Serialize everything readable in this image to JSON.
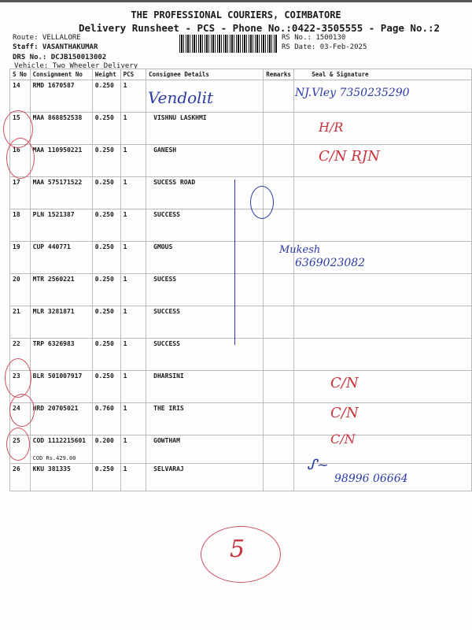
{
  "header": {
    "title": "THE PROFESSIONAL COURIERS, COIMBATORE",
    "subtitle": "Delivery Runsheet - PCS - Phone No.:0422-3505555 - Page No.:2",
    "route": "Route: VELLALORE",
    "staff": "Staff: VASANTHAKUMAR",
    "drs": "DRS No.: DCJB150013002",
    "vehicle": "Vehicle: Two Wheeler Delivery",
    "rs_no": "RS No.: 1500130",
    "rs_date": "RS Date: 03-Feb-2025"
  },
  "table": {
    "columns": [
      "S No",
      "Consignment No",
      "Weight",
      "PCS",
      "Consignee Details",
      "Remarks",
      "Seal & Signature"
    ],
    "rows": [
      {
        "sno": "14",
        "cn": "RMD 1670587",
        "wt": "0.250",
        "pcs": "1",
        "consignee": ""
      },
      {
        "sno": "15",
        "cn": "MAA 868852538",
        "wt": "0.250",
        "pcs": "1",
        "consignee": "VISHNU LASKHMI"
      },
      {
        "sno": "16",
        "cn": "MAA 110950221",
        "wt": "0.250",
        "pcs": "1",
        "consignee": "GANESH"
      },
      {
        "sno": "17",
        "cn": "MAA 575171522",
        "wt": "0.250",
        "pcs": "1",
        "consignee": "SUCESS ROAD"
      },
      {
        "sno": "18",
        "cn": "PLN 1521387",
        "wt": "0.250",
        "pcs": "1",
        "consignee": "SUCCESS"
      },
      {
        "sno": "19",
        "cn": "CUP 440771",
        "wt": "0.250",
        "pcs": "1",
        "consignee": "GMOUS"
      },
      {
        "sno": "20",
        "cn": "MTR 2560221",
        "wt": "0.250",
        "pcs": "1",
        "consignee": "SUCESS"
      },
      {
        "sno": "21",
        "cn": "MLR 3281871",
        "wt": "0.250",
        "pcs": "1",
        "consignee": "SUCCESS"
      },
      {
        "sno": "22",
        "cn": "TRP 6326983",
        "wt": "0.250",
        "pcs": "1",
        "consignee": "SUCCESS"
      },
      {
        "sno": "23",
        "cn": "BLR 501007917",
        "wt": "0.250",
        "pcs": "1",
        "consignee": "DHARSINI"
      },
      {
        "sno": "24",
        "cn": "HRD 20705021",
        "wt": "0.760",
        "pcs": "1",
        "consignee": "THE IRIS"
      },
      {
        "sno": "25",
        "cn": "COD 1112215601",
        "wt": "0.200",
        "pcs": "1",
        "consignee": "GOWTHAM",
        "note": "COD Rs.429.00"
      },
      {
        "sno": "26",
        "cn": "KKU 381335",
        "wt": "0.250",
        "pcs": "1",
        "consignee": "SELVARAJ"
      }
    ]
  },
  "handwriting": {
    "r14": "Vendolit",
    "r14sig": "NJ.Vley 7350235290",
    "r15": "H/R",
    "r16": "C/N RJN",
    "r19": "Mukesh",
    "r19phone": "6369023082",
    "r23": "C/N",
    "r24": "C/N",
    "r25": "C/N",
    "r26": "98996 06664",
    "page_mark": "5"
  },
  "colors": {
    "ink_blue": "#2a3aa8",
    "ink_red": "#c8323c"
  }
}
